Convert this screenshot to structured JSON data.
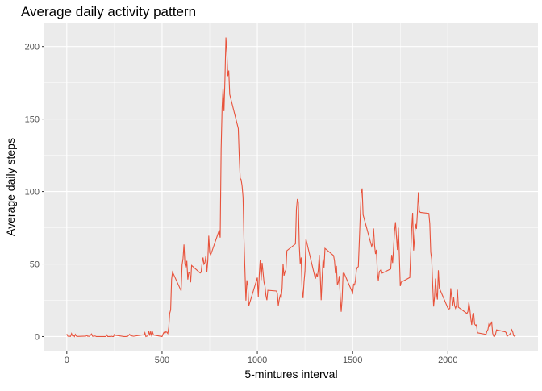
{
  "chart_data": {
    "type": "line",
    "title": "Average daily activity pattern",
    "x_label": "5-mintures interval",
    "y_label": "Average daily steps",
    "x": [
      0,
      5,
      10,
      15,
      20,
      25,
      30,
      35,
      40,
      45,
      50,
      55,
      100,
      105,
      110,
      115,
      120,
      125,
      130,
      135,
      140,
      145,
      150,
      155,
      200,
      205,
      210,
      215,
      220,
      225,
      230,
      235,
      240,
      245,
      250,
      255,
      300,
      310,
      320,
      330,
      335,
      340,
      350,
      400,
      405,
      410,
      415,
      420,
      425,
      430,
      435,
      440,
      445,
      450,
      455,
      500,
      505,
      510,
      515,
      520,
      525,
      530,
      535,
      540,
      545,
      550,
      555,
      600,
      605,
      610,
      615,
      620,
      625,
      630,
      635,
      640,
      645,
      650,
      655,
      700,
      705,
      710,
      715,
      720,
      725,
      730,
      735,
      740,
      745,
      750,
      755,
      800,
      805,
      810,
      815,
      820,
      825,
      830,
      835,
      840,
      845,
      850,
      855,
      900,
      905,
      910,
      915,
      920,
      925,
      930,
      935,
      940,
      945,
      950,
      955,
      1000,
      1005,
      1010,
      1015,
      1020,
      1025,
      1030,
      1035,
      1040,
      1045,
      1050,
      1055,
      1100,
      1105,
      1110,
      1115,
      1120,
      1125,
      1130,
      1135,
      1140,
      1145,
      1150,
      1155,
      1200,
      1205,
      1210,
      1215,
      1220,
      1225,
      1230,
      1235,
      1240,
      1245,
      1250,
      1255,
      1300,
      1305,
      1310,
      1315,
      1320,
      1325,
      1330,
      1335,
      1340,
      1345,
      1350,
      1355,
      1400,
      1405,
      1410,
      1415,
      1420,
      1425,
      1430,
      1435,
      1440,
      1445,
      1450,
      1455,
      1500,
      1505,
      1510,
      1515,
      1520,
      1525,
      1530,
      1535,
      1540,
      1545,
      1550,
      1555,
      1600,
      1605,
      1610,
      1615,
      1620,
      1625,
      1630,
      1635,
      1640,
      1645,
      1650,
      1655,
      1700,
      1705,
      1710,
      1715,
      1720,
      1725,
      1730,
      1735,
      1740,
      1745,
      1750,
      1755,
      1800,
      1805,
      1810,
      1815,
      1820,
      1825,
      1830,
      1835,
      1840,
      1845,
      1850,
      1855,
      1900,
      1905,
      1910,
      1915,
      1920,
      1925,
      1930,
      1935,
      1940,
      1945,
      1950,
      1955,
      2000,
      2005,
      2010,
      2015,
      2020,
      2025,
      2030,
      2035,
      2040,
      2045,
      2050,
      2055,
      2100,
      2105,
      2110,
      2115,
      2120,
      2125,
      2130,
      2135,
      2140,
      2145,
      2150,
      2155,
      2200,
      2205,
      2210,
      2215,
      2220,
      2225,
      2230,
      2235,
      2240,
      2245,
      2250,
      2255,
      2300,
      2305,
      2310,
      2315,
      2320,
      2325,
      2330,
      2335,
      2340,
      2345,
      2350,
      2355
    ],
    "series": [
      {
        "color": "#e8523b",
        "values": [
          1.7,
          0.3,
          0.1,
          0.2,
          0.1,
          2.1,
          0.5,
          0.9,
          0,
          1.5,
          0.3,
          0.1,
          0.3,
          0.7,
          0.2,
          0.3,
          0,
          1.1,
          1.8,
          0.2,
          0.2,
          0.4,
          0.3,
          0,
          0,
          0,
          1.1,
          0,
          0,
          0.1,
          0,
          0.2,
          0,
          0,
          1.5,
          0.9,
          0,
          0,
          0.2,
          1.6,
          0.6,
          0.5,
          0.2,
          1.2,
          0.9,
          2.6,
          0,
          0.3,
          0.4,
          4.1,
          0.7,
          3.5,
          0.8,
          3.1,
          1.1,
          0,
          1.7,
          3.0,
          2.2,
          3.3,
          3.0,
          2.1,
          6.1,
          16.0,
          18.3,
          39.5,
          44.5,
          31.5,
          49.3,
          53.8,
          63.5,
          50,
          47.1,
          52.2,
          39.3,
          44.0,
          44.2,
          37.4,
          49.0,
          43.8,
          44.4,
          50.5,
          54.5,
          49.9,
          51.0,
          55.7,
          44.3,
          52.3,
          69.5,
          57.8,
          56.2,
          73.4,
          68.2,
          129.4,
          157.5,
          171.2,
          155.4,
          177.3,
          206.2,
          195.9,
          179.6,
          183.4,
          167.0,
          143.5,
          124.0,
          109.1,
          108.1,
          103.7,
          96.0,
          66.2,
          45.2,
          24.8,
          38.8,
          35.0,
          21.1,
          40.6,
          27.0,
          42.4,
          52.7,
          38.9,
          50.8,
          44.3,
          37.4,
          34.7,
          28.3,
          25.1,
          31.9,
          31.4,
          29.7,
          21.3,
          25.5,
          28.4,
          26.5,
          33.4,
          50.0,
          42.0,
          44.6,
          46.0,
          59.2,
          63.9,
          87.7,
          94.8,
          92.8,
          63.4,
          50.2,
          54.5,
          32.4,
          26.5,
          37.7,
          45.1,
          67.3,
          42.3,
          39.9,
          43.3,
          41.0,
          46.2,
          56.4,
          42.8,
          25.1,
          40.0,
          53.5,
          47.3,
          60.8,
          55.8,
          52.0,
          43.6,
          48.7,
          35.5,
          37.5,
          41.8,
          27.5,
          17.1,
          26.1,
          43.6,
          43.8,
          30.0,
          36.1,
          35.5,
          38.8,
          46.0,
          47.8,
          48.1,
          65.3,
          82.9,
          98.7,
          102.1,
          84.0,
          62.1,
          64.1,
          74.5,
          63.2,
          56.9,
          59.8,
          43.9,
          38.6,
          44.7,
          45.5,
          46.2,
          43.7,
          46.6,
          56.3,
          50.7,
          61.2,
          72.7,
          78.9,
          68.9,
          59.7,
          75.1,
          56.5,
          34.8,
          37.5,
          40.7,
          58.0,
          74.7,
          85.3,
          59.3,
          67.8,
          77.7,
          74.2,
          85.3,
          99.5,
          86.6,
          85.6,
          84.9,
          77.8,
          58.0,
          53.4,
          36.3,
          20.7,
          27.4,
          40.0,
          30.2,
          25.5,
          45.7,
          33.5,
          19.6,
          19.0,
          19.3,
          33.3,
          26.8,
          21.2,
          27.3,
          21.3,
          19.5,
          21.3,
          32.3,
          20.2,
          15.9,
          17.2,
          23.5,
          19.2,
          12.5,
          8.0,
          14.7,
          16.3,
          8.7,
          7.8,
          8.1,
          2.6,
          1.5,
          3.7,
          4.8,
          8.5,
          7.1,
          8.7,
          9.8,
          2.2,
          0.3,
          0.1,
          1.6,
          4.6,
          3.3,
          2.8,
          0,
          0.8,
          1.0,
          1.6,
          2.6,
          4.7,
          3.3,
          0.6,
          0.2,
          1.1
        ]
      }
    ],
    "xlim": [
      -117.75,
      2472.75
    ],
    "ylim": [
      -10.3,
      216.5
    ],
    "xticks": [
      0,
      500,
      1000,
      1500,
      2000
    ],
    "yticks": [
      0,
      50,
      100,
      150,
      200
    ],
    "grid": true,
    "minor_grid": true
  }
}
